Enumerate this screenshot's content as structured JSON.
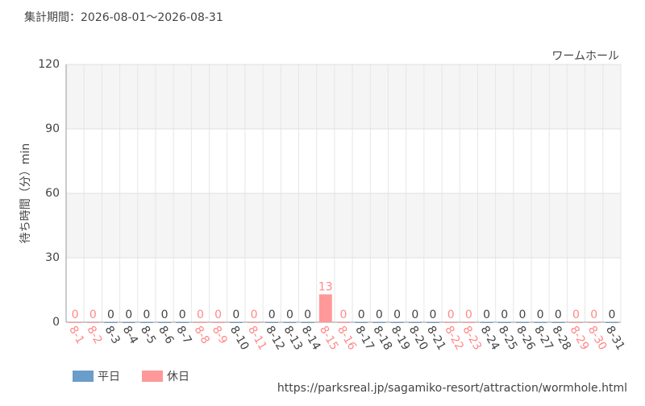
{
  "chart_data": {
    "type": "bar",
    "title": "集計期間：2026-08-01～2026-08-31",
    "subtitle": "ワームホール",
    "y_label": "待ち時間（分）min",
    "source": "https://parksreal.jp/sagamiko-resort/attraction/wormhole.html",
    "categories": [
      "8-1",
      "8-2",
      "8-3",
      "8-4",
      "8-5",
      "8-6",
      "8-7",
      "8-8",
      "8-9",
      "8-10",
      "8-11",
      "8-12",
      "8-13",
      "8-14",
      "8-15",
      "8-16",
      "8-17",
      "8-18",
      "8-19",
      "8-20",
      "8-21",
      "8-22",
      "8-23",
      "8-24",
      "8-25",
      "8-26",
      "8-27",
      "8-28",
      "8-29",
      "8-30",
      "8-31"
    ],
    "series": [
      {
        "name": "平日",
        "color": "#6a9dc9",
        "label_color": "#444444",
        "values": [
          null,
          null,
          0,
          0,
          0,
          0,
          0,
          null,
          null,
          0,
          null,
          0,
          0,
          0,
          null,
          null,
          0,
          0,
          0,
          0,
          0,
          null,
          null,
          0,
          0,
          0,
          0,
          0,
          null,
          null,
          0
        ]
      },
      {
        "name": "休日",
        "color": "#ff9999",
        "label_color": "#ff8888",
        "values": [
          0,
          0,
          null,
          null,
          null,
          null,
          null,
          0,
          0,
          null,
          0,
          null,
          null,
          null,
          13,
          0,
          null,
          null,
          null,
          null,
          null,
          0,
          0,
          null,
          null,
          null,
          null,
          null,
          0,
          0,
          null
        ]
      }
    ],
    "ylim": [
      0,
      120
    ],
    "yticks": [
      0,
      30,
      60,
      90,
      120
    ],
    "grid": true
  }
}
